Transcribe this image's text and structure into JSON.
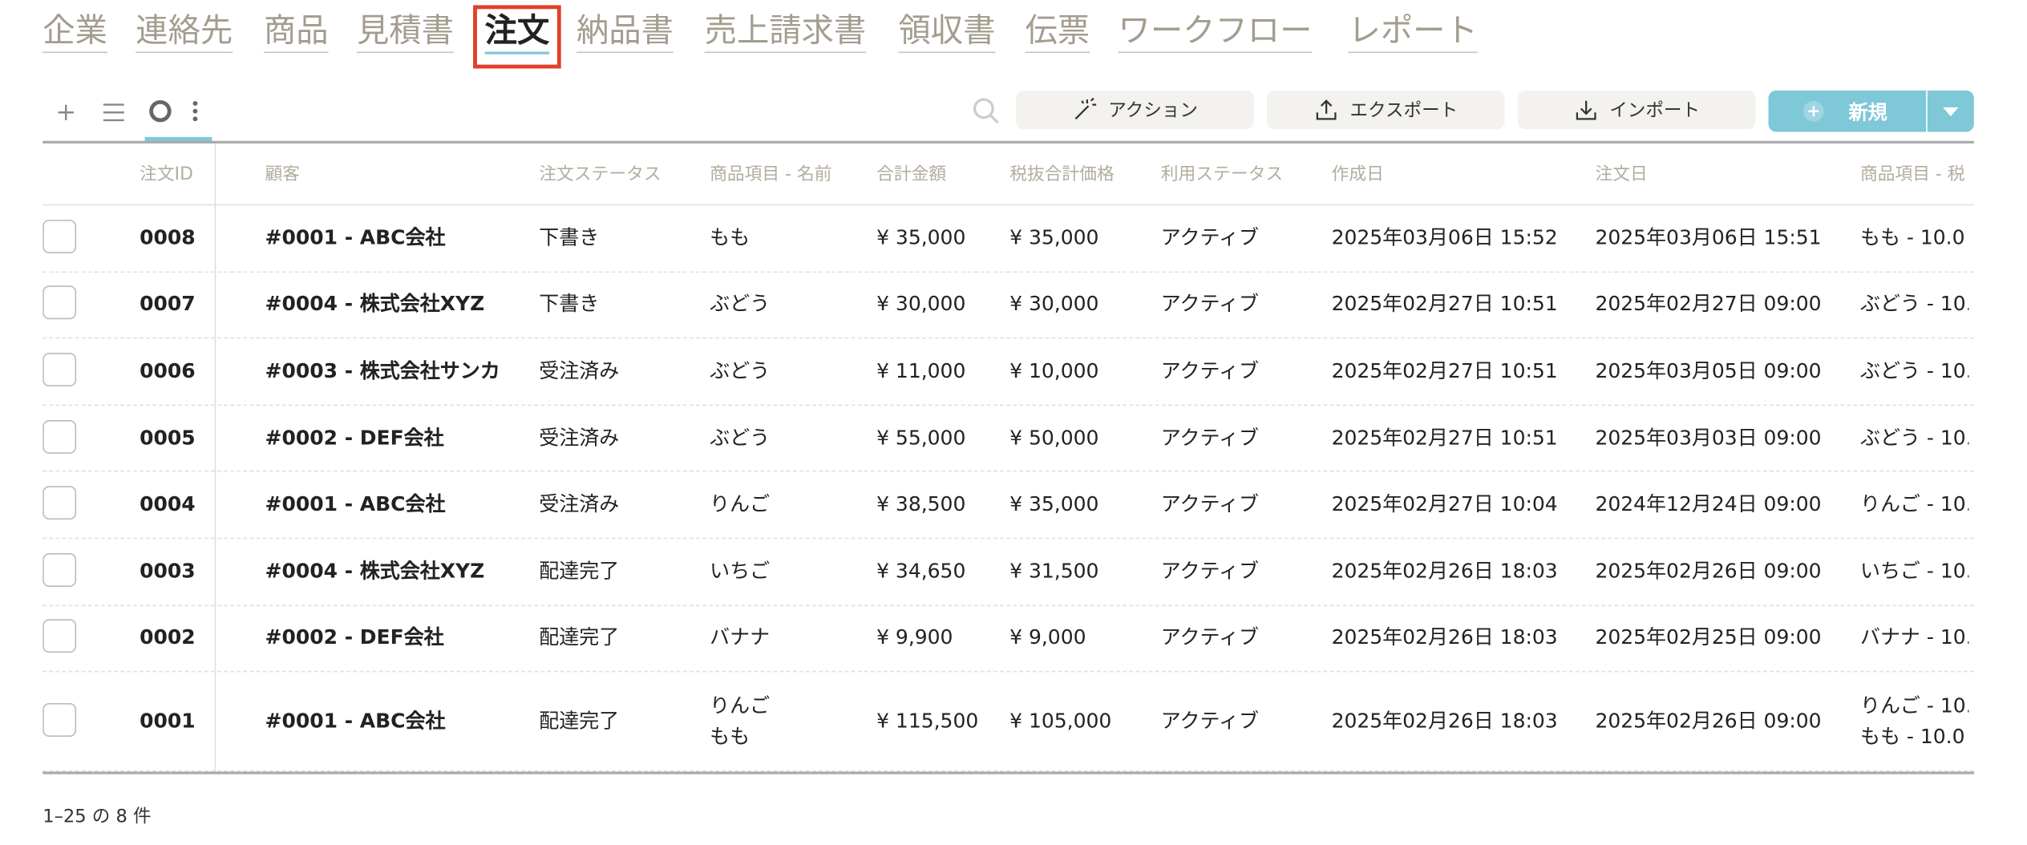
{
  "tabs": {
    "items": [
      "企業",
      "連絡先",
      "商品",
      "見積書",
      "注文",
      "納品書",
      "売上請求書",
      "領収書",
      "伝票",
      "ワークフロー",
      "レポート"
    ],
    "active": 4
  },
  "toolbar": {
    "buttons": [
      "アクション",
      "エクスポート",
      "インポート"
    ],
    "new_button": "新規"
  },
  "table": {
    "columns": [
      "注文ID",
      "顧客",
      "注文ステータス",
      "商品項目 - 名前",
      "合計金額",
      "税抜合計価格",
      "利用ステータス",
      "作成日",
      "注文日",
      "商品項目 - 税"
    ],
    "rows": [
      [
        "0008",
        "#0001 - ABC会社",
        "下書き",
        "もも",
        "¥ 35,000",
        "¥ 35,000",
        "アクティブ",
        "2025年03月06日 15:52",
        "2025年03月06日 15:51",
        "もも - 10.0"
      ],
      [
        "0007",
        "#0004 - 株式会社XYZ",
        "下書き",
        "ぶどう",
        "¥ 30,000",
        "¥ 30,000",
        "アクティブ",
        "2025年02月27日 10:51",
        "2025年02月27日 09:00",
        "ぶどう - 10."
      ],
      [
        "0006",
        "#0003 - 株式会社サンカ",
        "受注済み",
        "ぶどう",
        "¥ 11,000",
        "¥ 10,000",
        "アクティブ",
        "2025年02月27日 10:51",
        "2025年03月05日 09:00",
        "ぶどう - 10."
      ],
      [
        "0005",
        "#0002 - DEF会社",
        "受注済み",
        "ぶどう",
        "¥ 55,000",
        "¥ 50,000",
        "アクティブ",
        "2025年02月27日 10:51",
        "2025年03月03日 09:00",
        "ぶどう - 10."
      ],
      [
        "0004",
        "#0001 - ABC会社",
        "受注済み",
        "りんご",
        "¥ 38,500",
        "¥ 35,000",
        "アクティブ",
        "2025年02月27日 10:04",
        "2024年12月24日 09:00",
        "りんご - 10."
      ],
      [
        "0003",
        "#0004 - 株式会社XYZ",
        "配達完了",
        "いちご",
        "¥ 34,650",
        "¥ 31,500",
        "アクティブ",
        "2025年02月26日 18:03",
        "2025年02月26日 09:00",
        "いちご - 10."
      ],
      [
        "0002",
        "#0002 - DEF会社",
        "配達完了",
        "バナナ",
        "¥ 9,900",
        "¥ 9,000",
        "アクティブ",
        "2025年02月26日 18:03",
        "2025年02月25日 09:00",
        "バナナ - 10."
      ],
      [
        "0001",
        "#0001 - ABC会社",
        "配達完了",
        [
          "りんご",
          "もも"
        ],
        "¥ 115,500",
        "¥ 105,000",
        "アクティブ",
        "2025年02月26日 18:03",
        "2025年02月26日 09:00",
        [
          "りんご - 10.",
          "もも - 10.0"
        ]
      ]
    ]
  },
  "footer": {
    "pagination": "1–25 の 8 件"
  }
}
